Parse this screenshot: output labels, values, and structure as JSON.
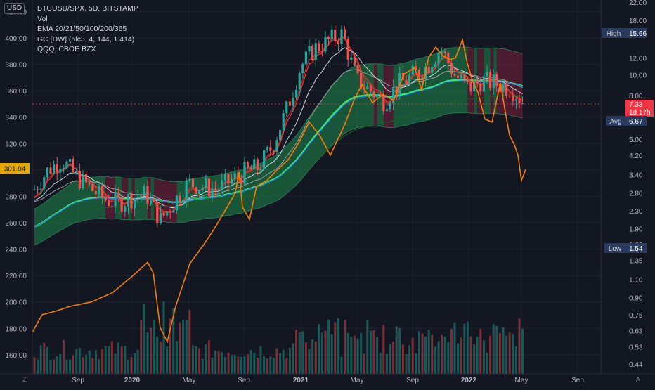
{
  "header": {
    "currency_badge": "USD",
    "legend_lines": [
      "BTCUSD/SPX, 5D, BITSTAMP",
      "Vol",
      "EMA 20/21/50/100/200/365",
      "GC [DW] (hlc3, 4, 144, 1.414)",
      "QQQ, CBOE BZX"
    ]
  },
  "corner": {
    "left_icon": "Z",
    "right_icon": "A"
  },
  "colors": {
    "background": "#131722",
    "up_candle": "#26a69a",
    "down_candle": "#ef5350",
    "qqq_line": "#f57c00",
    "gc_center": "#35e86c",
    "band_fill_green": "#1f8a4c",
    "band_fill_red": "#7a1f3a",
    "price_line": "#ef5350",
    "axis_text": "#b2b5be",
    "label_blue": "#2a3a5c"
  },
  "chart_data": {
    "type": "candlestick",
    "left_axis": {
      "ticks": [
        "160.00",
        "180.00",
        "200.00",
        "220.00",
        "240.00",
        "260.00",
        "280.00",
        "300.00",
        "320.00",
        "340.00",
        "360.00",
        "380.00",
        "400.00",
        "420.00"
      ],
      "range": [
        152,
        423
      ]
    },
    "right_axis": {
      "scale": "log",
      "ticks": [
        "0.44",
        "0.53",
        "0.63",
        "0.75",
        "0.90",
        "1.10",
        "1.35",
        "1.60",
        "1.90",
        "2.30",
        "2.80",
        "3.40",
        "4.20",
        "5.00",
        "6.00",
        "8.00",
        "10.00",
        "12.00",
        "15.66",
        "18.00",
        "22.00"
      ]
    },
    "x_axis": {
      "ticks": [
        "Sep",
        "2020",
        "May",
        "Sep",
        "2021",
        "May",
        "Sep",
        "2022",
        "May",
        "Sep"
      ],
      "bold": [
        "2020",
        "2021",
        "2022"
      ]
    },
    "current_price": {
      "value": "301.94"
    },
    "qqq": {
      "current": "7.33",
      "countdown": "1d 17h",
      "avg_label": "Avg",
      "avg_value": "6.67",
      "high_label": "High",
      "high_value": "15.66",
      "low_label": "Low",
      "low_value": "1.54"
    },
    "btc_spx_series_approx": [
      {
        "t": "2019-06",
        "v": 285
      },
      {
        "t": "2019-07",
        "v": 300
      },
      {
        "t": "2019-08",
        "v": 308
      },
      {
        "t": "2019-09",
        "v": 295
      },
      {
        "t": "2019-11",
        "v": 278
      },
      {
        "t": "2019-12",
        "v": 275
      },
      {
        "t": "2020-01",
        "v": 279
      },
      {
        "t": "2020-02",
        "v": 282
      },
      {
        "t": "2020-03",
        "v": 262
      },
      {
        "t": "2020-05",
        "v": 290
      },
      {
        "t": "2020-07",
        "v": 285
      },
      {
        "t": "2020-09",
        "v": 298
      },
      {
        "t": "2020-10",
        "v": 302
      },
      {
        "t": "2020-11",
        "v": 318
      },
      {
        "t": "2020-12",
        "v": 345
      },
      {
        "t": "2021-01",
        "v": 378
      },
      {
        "t": "2021-02",
        "v": 392
      },
      {
        "t": "2021-04",
        "v": 403
      },
      {
        "t": "2021-05",
        "v": 368
      },
      {
        "t": "2021-07",
        "v": 352
      },
      {
        "t": "2021-08",
        "v": 365
      },
      {
        "t": "2021-10",
        "v": 378
      },
      {
        "t": "2021-11",
        "v": 392
      },
      {
        "t": "2021-12",
        "v": 372
      },
      {
        "t": "2022-01",
        "v": 362
      },
      {
        "t": "2022-02",
        "v": 368
      },
      {
        "t": "2022-03",
        "v": 365
      },
      {
        "t": "2022-04",
        "v": 362
      },
      {
        "t": "2022-05",
        "v": 350
      }
    ]
  }
}
